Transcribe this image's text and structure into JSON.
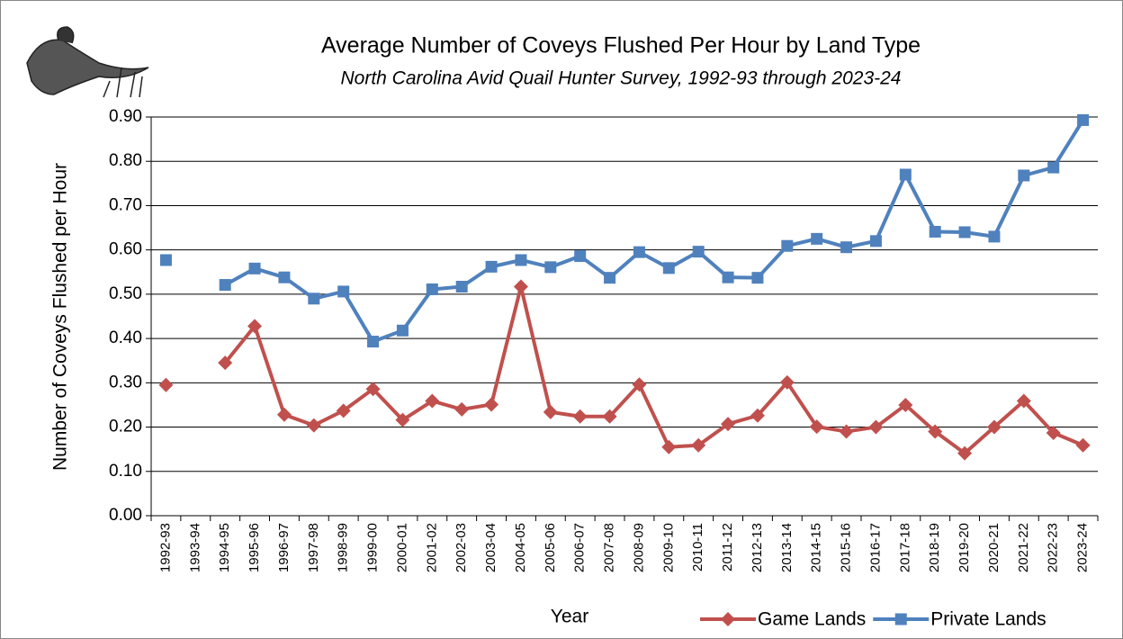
{
  "chart_data": {
    "type": "line",
    "title": "Average Number of Coveys Flushed Per Hour by Land Type",
    "subtitle": "North Carolina Avid Quail Hunter Survey, 1992-93 through 2023-24",
    "x_label": "Year",
    "y_label": "Number of Coveys Flushed per Hour",
    "categories": [
      "1992-93",
      "1993-94",
      "1994-95",
      "1995-96",
      "1996-97",
      "1997-98",
      "1998-99",
      "1999-00",
      "2000-01",
      "2001-02",
      "2002-03",
      "2003-04",
      "2004-05",
      "2005-06",
      "2006-07",
      "2007-08",
      "2008-09",
      "2009-10",
      "2010-11",
      "2011-12",
      "2012-13",
      "2013-14",
      "2014-15",
      "2015-16",
      "2016-17",
      "2017-18",
      "2018-19",
      "2019-20",
      "2020-21",
      "2021-22",
      "2022-23",
      "2023-24"
    ],
    "series": [
      {
        "name": "Game Lands",
        "color": "#c0504d",
        "marker": "diamond",
        "values": [
          0.295,
          null,
          0.345,
          0.428,
          0.228,
          0.204,
          0.237,
          0.286,
          0.216,
          0.259,
          0.24,
          0.251,
          0.517,
          0.234,
          0.224,
          0.224,
          0.296,
          0.155,
          0.159,
          0.207,
          0.226,
          0.301,
          0.201,
          0.19,
          0.2,
          0.25,
          0.19,
          0.141,
          0.2,
          0.259,
          0.187,
          0.159
        ]
      },
      {
        "name": "Private Lands",
        "color": "#4f81bd",
        "marker": "square",
        "values": [
          0.577,
          null,
          0.521,
          0.558,
          0.538,
          0.49,
          0.506,
          0.393,
          0.418,
          0.511,
          0.517,
          0.562,
          0.577,
          0.561,
          0.586,
          0.537,
          0.595,
          0.559,
          0.596,
          0.538,
          0.537,
          0.609,
          0.625,
          0.606,
          0.62,
          0.77,
          0.641,
          0.64,
          0.63,
          0.768,
          0.786,
          0.893
        ]
      }
    ],
    "ylim": [
      0,
      0.9
    ],
    "yticks": [
      {
        "value": 0,
        "label": "0.00"
      },
      {
        "value": 0.1,
        "label": "0.10"
      },
      {
        "value": 0.2,
        "label": "0.20"
      },
      {
        "value": 0.3,
        "label": "0.30"
      },
      {
        "value": 0.4,
        "label": "0.40"
      },
      {
        "value": 0.5,
        "label": "0.50"
      },
      {
        "value": 0.6,
        "label": "0.60"
      },
      {
        "value": 0.7,
        "label": "0.70"
      },
      {
        "value": 0.8,
        "label": "0.80"
      },
      {
        "value": 0.9,
        "label": "0.90"
      }
    ],
    "grid": true,
    "legend": "bottom-right"
  }
}
